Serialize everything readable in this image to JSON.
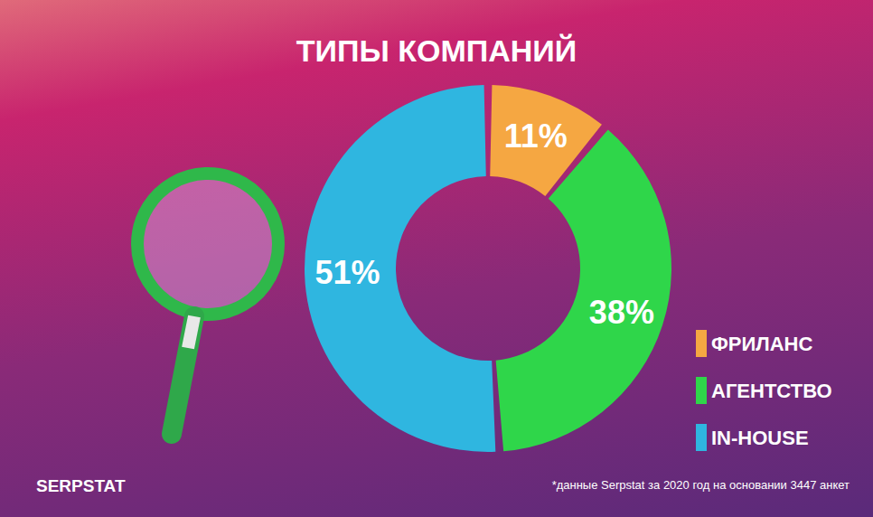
{
  "chart_data": {
    "type": "pie",
    "title": "ТИПЫ КОМПАНИЙ",
    "categories": [
      "ФРИЛАНС",
      "АГЕНТСТВО",
      "IN-HOUSE"
    ],
    "values": [
      11,
      38,
      51
    ],
    "value_labels": [
      "11%",
      "38%",
      "51%"
    ],
    "colors": [
      "#f5a742",
      "#2fd64a",
      "#2fb6e0"
    ],
    "data_labels": true,
    "legend": "right",
    "annotations": [
      "*данные Serpstat за 2020 год на основании 3447 анкет",
      "SERPSTAT"
    ]
  }
}
